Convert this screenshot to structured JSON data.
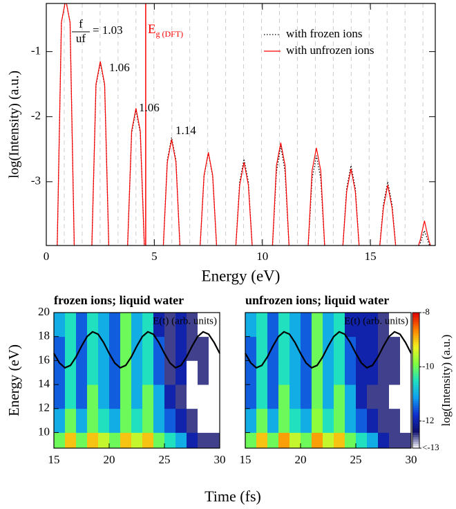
{
  "chart_data": [
    {
      "type": "line",
      "xlabel": "Energy (eV)",
      "ylabel": "log(Intensity) (a.u.)",
      "xlim": [
        0,
        18
      ],
      "ylim": [
        -3.98,
        -0.26
      ],
      "xticks": [
        0,
        5,
        10,
        15
      ],
      "yticks": [
        -1,
        -2,
        -3
      ],
      "x": [
        0.5,
        0.7,
        0.9,
        1.1,
        1.3,
        2.1,
        2.3,
        2.5,
        2.7,
        2.9,
        3.75,
        3.95,
        4.15,
        4.35,
        4.55,
        5.4,
        5.6,
        5.8,
        6.0,
        6.2,
        7.1,
        7.3,
        7.5,
        7.7,
        7.9,
        8.75,
        8.95,
        9.15,
        9.35,
        9.55,
        10.45,
        10.65,
        10.85,
        11.05,
        11.25,
        12.1,
        12.3,
        12.5,
        12.7,
        12.9,
        13.7,
        13.9,
        14.1,
        14.3,
        14.5,
        15.4,
        15.6,
        15.8,
        16.0,
        16.2,
        17.1,
        17.3,
        17.5,
        17.7,
        17.9
      ],
      "series": [
        {
          "name": "with frozen ions",
          "color": "#000000",
          "dash": "dotted",
          "values": [
            -4.1,
            -0.55,
            -0.2,
            -0.55,
            -4.1,
            -4.1,
            -1.52,
            -1.17,
            -1.52,
            -4.1,
            -4.1,
            -2.25,
            -1.9,
            -2.25,
            -4.1,
            -4.1,
            -2.67,
            -2.32,
            -2.67,
            -4.1,
            -4.1,
            -2.92,
            -2.55,
            -2.92,
            -4.1,
            -4.1,
            -3.0,
            -2.65,
            -3.0,
            -4.1,
            -4.1,
            -2.85,
            -2.45,
            -2.85,
            -4.1,
            -4.1,
            -2.95,
            -2.6,
            -2.95,
            -4.1,
            -4.1,
            -3.1,
            -2.75,
            -3.1,
            -4.1,
            -4.1,
            -3.35,
            -3.0,
            -3.35,
            -4.1,
            -4.1,
            -3.95,
            -3.75,
            -3.95,
            -4.1
          ]
        },
        {
          "name": "with unfrozen ions",
          "color": "#ff0000",
          "dash": "solid",
          "values": [
            -4.1,
            -0.55,
            -0.2,
            -0.55,
            -4.1,
            -4.1,
            -1.5,
            -1.15,
            -1.5,
            -4.1,
            -4.1,
            -2.22,
            -1.87,
            -2.22,
            -4.1,
            -4.1,
            -2.7,
            -2.35,
            -2.7,
            -4.1,
            -4.1,
            -2.9,
            -2.55,
            -2.9,
            -4.1,
            -4.1,
            -3.05,
            -2.7,
            -3.05,
            -4.1,
            -4.1,
            -2.75,
            -2.4,
            -2.75,
            -4.1,
            -4.1,
            -2.83,
            -2.48,
            -2.83,
            -4.1,
            -4.1,
            -3.15,
            -2.8,
            -3.15,
            -4.1,
            -4.1,
            -3.4,
            -3.05,
            -3.4,
            -4.1,
            -4.1,
            -3.9,
            -3.6,
            -3.9,
            -4.1
          ]
        }
      ],
      "harmonic_lines": [
        0.83,
        1.66,
        2.49,
        3.32,
        4.15,
        4.98,
        5.81,
        6.64,
        7.47,
        8.3,
        9.13,
        9.96,
        10.79,
        11.62,
        12.45,
        13.28,
        14.11,
        14.94,
        15.77,
        16.6,
        17.43
      ],
      "harmonic_line_color": "#cccccc",
      "gap_line": {
        "x": 4.6,
        "color": "#ff0000",
        "label": "E",
        "label_sub": "g (DFT)"
      },
      "ratio_annotation": {
        "numerator": "f",
        "denominator": "uf",
        "text": "= 1.03"
      },
      "peak_annotations": [
        "1.06",
        "1.06",
        "1.14"
      ],
      "legend": "upper right"
    },
    {
      "type": "heatmap",
      "title": "frozen ions; liquid water",
      "title_color": "#0000ff",
      "ylabel": "Energy (eV)",
      "xlabel": "Time (fs)",
      "xlim": [
        15,
        30
      ],
      "ylim": [
        8.7,
        20
      ],
      "xticks": [
        15,
        20,
        25,
        30
      ],
      "yticks": [
        10,
        12,
        14,
        16,
        18,
        20
      ],
      "ytick_labels": true,
      "time_bins": [
        15,
        16,
        17,
        18,
        19,
        20,
        21,
        22,
        23,
        24,
        25,
        26,
        27,
        28,
        29,
        30
      ],
      "energy_bins": [
        8.7,
        10,
        12,
        14,
        16,
        18,
        20
      ],
      "values": [
        [
          -10,
          -9,
          -10,
          -9,
          -9.5,
          -10,
          -9,
          -9.5,
          -9,
          -10,
          -10.5,
          -11,
          -12,
          -12.5,
          -12.5
        ],
        [
          -11,
          -10,
          -11,
          -10,
          -10.5,
          -11,
          -10,
          -10.5,
          -10,
          -11,
          -11.5,
          -12,
          -12.5,
          -13,
          -13
        ],
        [
          -11.5,
          -10.5,
          -11.5,
          -10,
          -11,
          -11.5,
          -10,
          -11,
          -10,
          -11,
          -12,
          -12.5,
          -13,
          -13,
          -13
        ],
        [
          -11.5,
          -10.5,
          -11.5,
          -10.5,
          -11,
          -11.5,
          -10,
          -11,
          -10.5,
          -11.5,
          -12.5,
          -12,
          -13,
          -12.5,
          -13
        ],
        [
          -11.5,
          -10.5,
          -11.5,
          -10.5,
          -11,
          -11.5,
          -10,
          -11,
          -10.5,
          -11.5,
          -12.5,
          -12,
          -12.5,
          -12.5,
          -13
        ],
        [
          -11,
          -10.5,
          -11.5,
          -10.5,
          -11,
          -11.5,
          -10,
          -11,
          -10.5,
          -12,
          -12.5,
          -12,
          -12.5,
          -13,
          -13
        ]
      ],
      "zlim": [
        -13,
        -8
      ],
      "colormap": [
        "#ffffff",
        "#101070",
        "#1030d0",
        "#10a0f0",
        "#20e0c0",
        "#80ff40",
        "#f0f020",
        "#ff8000",
        "#e00000"
      ],
      "efield": {
        "label": "E(t) (arb. units)",
        "color": "#000000",
        "x": [
          15,
          15.5,
          16,
          16.5,
          17,
          17.5,
          18,
          18.5,
          19,
          19.5,
          20,
          20.5,
          21,
          21.5,
          22,
          22.5,
          23,
          23.5,
          24,
          24.5,
          25,
          25.5,
          26,
          26.5,
          27,
          27.5,
          28,
          28.5,
          29,
          29.5,
          30
        ],
        "values": [
          16.6,
          15.8,
          15.4,
          15.6,
          16.3,
          17.2,
          18.0,
          18.4,
          18.2,
          17.5,
          16.6,
          15.8,
          15.4,
          15.6,
          16.3,
          17.2,
          18.0,
          18.4,
          18.2,
          17.5,
          16.6,
          15.8,
          15.4,
          15.6,
          16.3,
          17.2,
          18.0,
          18.4,
          18.2,
          17.5,
          16.6
        ]
      }
    },
    {
      "type": "heatmap",
      "title": "unfrozen ions; liquid water",
      "title_color": "#0000ff",
      "xlim": [
        15,
        30
      ],
      "ylim": [
        8.7,
        20
      ],
      "xticks": [
        15,
        20,
        25,
        30
      ],
      "yticks": [
        10,
        12,
        14,
        16,
        18,
        20
      ],
      "ytick_labels": false,
      "time_bins": [
        15,
        16,
        17,
        18,
        19,
        20,
        21,
        22,
        23,
        24,
        25,
        26,
        27,
        28,
        29,
        30
      ],
      "energy_bins": [
        8.7,
        10,
        12,
        14,
        16,
        18,
        20
      ],
      "values": [
        [
          -10,
          -9,
          -10,
          -8.8,
          -9.5,
          -10,
          -8.8,
          -9.5,
          -9,
          -10,
          -10.5,
          -11,
          -12,
          -12.5,
          -12.5
        ],
        [
          -11,
          -10,
          -11,
          -10,
          -10.5,
          -11,
          -9.8,
          -10.5,
          -10,
          -11,
          -11.5,
          -12,
          -12.5,
          -12.5,
          -13
        ],
        [
          -11.5,
          -10.5,
          -11.5,
          -10,
          -11,
          -11.5,
          -10,
          -11,
          -10,
          -11,
          -12,
          -12.5,
          -12.5,
          -13,
          -13
        ],
        [
          -11.5,
          -10.5,
          -11.5,
          -10.5,
          -11,
          -11.5,
          -10,
          -11,
          -10.5,
          -11.5,
          -12,
          -12,
          -12.5,
          -12.5,
          -13
        ],
        [
          -11.5,
          -10.5,
          -11.5,
          -10.5,
          -11,
          -11.5,
          -10,
          -11,
          -10.5,
          -11.5,
          -12,
          -12,
          -12.5,
          -12.5,
          -13
        ],
        [
          -11,
          -10.5,
          -11.5,
          -10.5,
          -11,
          -11.5,
          -10,
          -11,
          -10.5,
          -12,
          -12,
          -12,
          -12.5,
          -13,
          -13
        ]
      ],
      "zlim": [
        -13,
        -8
      ],
      "colormap": [
        "#ffffff",
        "#101070",
        "#1030d0",
        "#10a0f0",
        "#20e0c0",
        "#80ff40",
        "#f0f020",
        "#ff8000",
        "#e00000"
      ],
      "colorbar": {
        "label": "log(Intensity) (a.u.)",
        "ticks": [
          -8,
          -10,
          -12,
          {
            "value": -13,
            "label": "<-13"
          }
        ]
      },
      "efield": {
        "label": "E(t) (arb. units)",
        "color": "#000000",
        "x": [
          15,
          15.5,
          16,
          16.5,
          17,
          17.5,
          18,
          18.5,
          19,
          19.5,
          20,
          20.5,
          21,
          21.5,
          22,
          22.5,
          23,
          23.5,
          24,
          24.5,
          25,
          25.5,
          26,
          26.5,
          27,
          27.5,
          28,
          28.5,
          29,
          29.5,
          30
        ],
        "values": [
          16.6,
          15.8,
          15.4,
          15.6,
          16.3,
          17.2,
          18.0,
          18.4,
          18.2,
          17.5,
          16.6,
          15.8,
          15.4,
          15.6,
          16.3,
          17.2,
          18.0,
          18.4,
          18.2,
          17.5,
          16.6,
          15.8,
          15.4,
          15.6,
          16.3,
          17.2,
          18.0,
          18.4,
          18.2,
          17.5,
          16.6
        ]
      }
    }
  ]
}
